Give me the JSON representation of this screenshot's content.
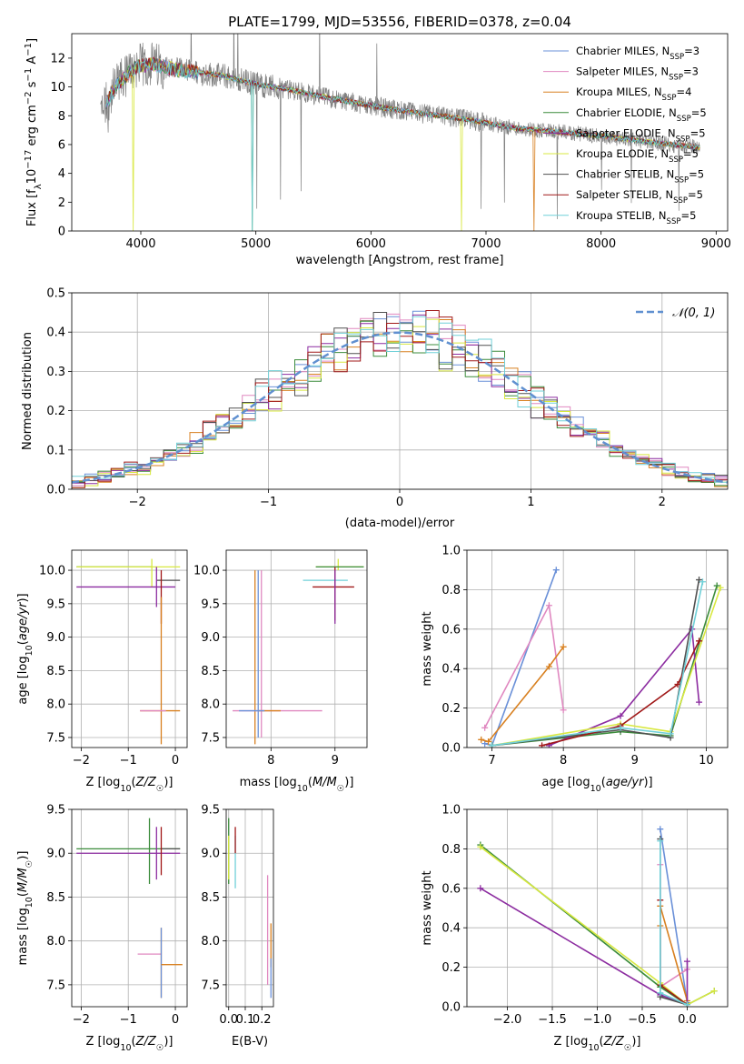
{
  "title": "PLATE=1799, MJD=53556, FIBERID=0378, z=0.04",
  "models": [
    {
      "label": "Chabrier MILES, N_SSP=3",
      "base": "Chabrier MILES, N",
      "sub": "SSP",
      "tail": "=3",
      "color": "#6a90d8"
    },
    {
      "label": "Salpeter MILES, N_SSP=3",
      "base": "Salpeter MILES, N",
      "sub": "SSP",
      "tail": "=3",
      "color": "#e088c0"
    },
    {
      "label": "Kroupa MILES, N_SSP=4",
      "base": "Kroupa MILES, N",
      "sub": "SSP",
      "tail": "=4",
      "color": "#d88020"
    },
    {
      "label": "Chabrier ELODIE, N_SSP=5",
      "base": "Chabrier ELODIE, N",
      "sub": "SSP",
      "tail": "=5",
      "color": "#3c8c3c"
    },
    {
      "label": "Salpeter ELODIE, N_SSP=5",
      "base": "Salpeter ELODIE, N",
      "sub": "SSP",
      "tail": "=5",
      "color": "#8c2ca0"
    },
    {
      "label": "Kroupa ELODIE, N_SSP=5",
      "base": "Kroupa ELODIE, N",
      "sub": "SSP",
      "tail": "=5",
      "color": "#d8e840"
    },
    {
      "label": "Chabrier STELIB, N_SSP=5",
      "base": "Chabrier STELIB, N",
      "sub": "SSP",
      "tail": "=5",
      "color": "#505050"
    },
    {
      "label": "Salpeter STELIB, N_SSP=5",
      "base": "Salpeter STELIB, N",
      "sub": "SSP",
      "tail": "=5",
      "color": "#a01818"
    },
    {
      "label": "Kroupa STELIB, N_SSP=5",
      "base": "Kroupa STELIB, N",
      "sub": "SSP",
      "tail": "=5",
      "color": "#70d0d8"
    }
  ],
  "chart_data": [
    {
      "id": "spectrum",
      "type": "line",
      "xlabel": "wavelength [Angstrom, rest frame]",
      "ylabel": "Flux [f_λ 10^-17 erg cm^-2 s^-1 A^-1]",
      "xlim": [
        3400,
        9100
      ],
      "ylim": [
        0,
        13.7
      ],
      "xticks": [
        4000,
        5000,
        6000,
        7000,
        8000,
        9000
      ],
      "yticks": [
        0,
        2,
        4,
        6,
        8,
        10,
        12
      ],
      "grid": false,
      "legend": "upper right",
      "continuum_x": [
        3650,
        3800,
        3950,
        4100,
        4300,
        4500,
        4700,
        5000,
        5300,
        5600,
        6000,
        6400,
        6800,
        7200,
        7600,
        8000,
        8400,
        8850
      ],
      "continuum_y": [
        8.3,
        10.2,
        11.4,
        11.6,
        11.2,
        11.0,
        10.8,
        10.2,
        9.8,
        9.3,
        8.7,
        8.2,
        7.8,
        7.2,
        6.9,
        6.6,
        6.2,
        5.8
      ],
      "data_color": "#808080"
    },
    {
      "id": "residuals",
      "type": "histogram",
      "xlabel": "(data-model)/error",
      "ylabel": "Normed distribution",
      "xlim": [
        -2.5,
        2.5
      ],
      "ylim": [
        0,
        0.5
      ],
      "xticks": [
        -2,
        -1,
        0,
        1,
        2
      ],
      "yticks": [
        0.0,
        0.1,
        0.2,
        0.3,
        0.4,
        0.5
      ],
      "grid": true,
      "legend": "upper right",
      "reference_curve": {
        "label": "N(0,1)",
        "color": "#6090d0"
      },
      "bin_width": 0.1
    },
    {
      "id": "age_vs_Z",
      "type": "errorbar",
      "xlabel": "Z [log10(Z/Z☉)]",
      "ylabel": "age [log10(age/yr)]",
      "xlim": [
        -2.2,
        0.25
      ],
      "ylim": [
        7.35,
        10.3
      ],
      "xticks": [
        -2,
        -1,
        0
      ],
      "yticks": [
        7.5,
        8.0,
        8.5,
        9.0,
        9.5,
        10.0
      ],
      "grid": true,
      "points": [
        {
          "model": 3,
          "x": -1.0,
          "xerr": [
            1.1,
            0.5
          ],
          "y": 10.05,
          "yerr": [
            0.0,
            0.0
          ]
        },
        {
          "model": 5,
          "x": -0.5,
          "xerr": [
            1.6,
            0.6
          ],
          "y": 10.05,
          "yerr": [
            0.3,
            0.12
          ]
        },
        {
          "model": 6,
          "x": -0.1,
          "xerr": [
            0.3,
            0.2
          ],
          "y": 9.85,
          "yerr": [
            0.0,
            0.0
          ]
        },
        {
          "model": 4,
          "x": -0.9,
          "xerr": [
            1.2,
            0.9
          ],
          "y": 9.75,
          "yerr": [
            0.0,
            0.0
          ]
        },
        {
          "model": 4,
          "x": -0.4,
          "xerr": [
            0.0,
            0.0
          ],
          "y": 9.75,
          "yerr": [
            0.3,
            0.3
          ]
        },
        {
          "model": 7,
          "x": -0.3,
          "xerr": [
            0.0,
            0.0
          ],
          "y": 9.6,
          "yerr": [
            0.4,
            0.4
          ]
        },
        {
          "model": 2,
          "x": -0.3,
          "xerr": [
            0.45,
            0.4
          ],
          "y": 7.9,
          "yerr": [
            0.5,
            1.7
          ]
        },
        {
          "model": 1,
          "x": -0.3,
          "xerr": [
            0.45,
            0.1
          ],
          "y": 7.9,
          "yerr": [
            0.0,
            0.0
          ]
        }
      ]
    },
    {
      "id": "age_vs_mass",
      "type": "errorbar",
      "xlabel": "mass [log10(M/M☉)]",
      "ylabel": "",
      "xlim": [
        7.3,
        9.5
      ],
      "ylim": [
        7.35,
        10.3
      ],
      "xticks": [
        8,
        9
      ],
      "yticks": [
        7.5,
        8.0,
        8.5,
        9.0,
        9.5,
        10.0
      ],
      "grid": true,
      "points": [
        {
          "model": 5,
          "x": 9.05,
          "xerr": [
            0.35,
            0.4
          ],
          "y": 10.05,
          "yerr": [
            0.05,
            0.12
          ]
        },
        {
          "model": 3,
          "x": 9.05,
          "xerr": [
            0.35,
            0.4
          ],
          "y": 10.05,
          "yerr": [
            0.0,
            0.0
          ]
        },
        {
          "model": 8,
          "x": 8.9,
          "xerr": [
            0.4,
            0.3
          ],
          "y": 9.85,
          "yerr": [
            0.0,
            0.0
          ]
        },
        {
          "model": 7,
          "x": 9.0,
          "xerr": [
            0.35,
            0.3
          ],
          "y": 9.75,
          "yerr": [
            0.5,
            0.3
          ]
        },
        {
          "model": 4,
          "x": 9.0,
          "xerr": [
            0.0,
            0.0
          ],
          "y": 9.6,
          "yerr": [
            0.4,
            0.4
          ]
        },
        {
          "model": 2,
          "x": 7.75,
          "xerr": [
            0.0,
            0.0
          ],
          "y": 8.5,
          "yerr": [
            1.1,
            1.5
          ]
        },
        {
          "model": 1,
          "x": 7.85,
          "xerr": [
            0.0,
            0.0
          ],
          "y": 8.5,
          "yerr": [
            1.0,
            1.5
          ]
        },
        {
          "model": 0,
          "x": 7.8,
          "xerr": [
            0.0,
            0.0
          ],
          "y": 8.5,
          "yerr": [
            1.0,
            1.5
          ]
        },
        {
          "model": 1,
          "x": 8.0,
          "xerr": [
            0.6,
            0.8
          ],
          "y": 7.9,
          "yerr": [
            0.0,
            0.0
          ]
        },
        {
          "model": 2,
          "x": 7.8,
          "xerr": [
            0.0,
            0.35
          ],
          "y": 7.9,
          "yerr": [
            0.0,
            0.0
          ]
        },
        {
          "model": 0,
          "x": 7.6,
          "xerr": [
            0.1,
            0.3
          ],
          "y": 7.9,
          "yerr": [
            0.0,
            0.0
          ]
        }
      ]
    },
    {
      "id": "weight_vs_age",
      "type": "line",
      "xlabel": "age [log10(age/yr)]",
      "ylabel": "mass weight",
      "xlim": [
        6.65,
        10.3
      ],
      "ylim": [
        0,
        1.0
      ],
      "xticks": [
        7,
        8,
        9,
        10
      ],
      "yticks": [
        0.0,
        0.2,
        0.4,
        0.6,
        0.8,
        1.0
      ],
      "grid": true,
      "series": [
        {
          "model": 0,
          "x": [
            6.9,
            7.0,
            7.9
          ],
          "y": [
            0.02,
            0.01,
            0.9
          ]
        },
        {
          "model": 1,
          "x": [
            6.9,
            7.8,
            8.0
          ],
          "y": [
            0.1,
            0.72,
            0.19
          ]
        },
        {
          "model": 2,
          "x": [
            6.85,
            6.95,
            7.8,
            8.0
          ],
          "y": [
            0.04,
            0.03,
            0.41,
            0.51
          ]
        },
        {
          "model": 3,
          "x": [
            7.0,
            8.8,
            9.5,
            10.15
          ],
          "y": [
            0.01,
            0.08,
            0.06,
            0.82
          ]
        },
        {
          "model": 4,
          "x": [
            7.8,
            8.8,
            9.8,
            9.9
          ],
          "y": [
            0.01,
            0.16,
            0.6,
            0.23
          ]
        },
        {
          "model": 5,
          "x": [
            7.0,
            8.8,
            9.5,
            10.2
          ],
          "y": [
            0.01,
            0.12,
            0.08,
            0.81
          ]
        },
        {
          "model": 6,
          "x": [
            7.0,
            8.8,
            9.5,
            9.9
          ],
          "y": [
            0.01,
            0.09,
            0.05,
            0.85
          ]
        },
        {
          "model": 7,
          "x": [
            7.7,
            8.8,
            9.6,
            9.9
          ],
          "y": [
            0.01,
            0.11,
            0.32,
            0.54
          ]
        },
        {
          "model": 8,
          "x": [
            7.0,
            8.8,
            9.5,
            9.95
          ],
          "y": [
            0.01,
            0.1,
            0.07,
            0.84
          ]
        }
      ]
    },
    {
      "id": "mass_vs_Z",
      "type": "errorbar",
      "xlabel": "Z [log10(Z/Z☉)]",
      "ylabel": "mass [log10(M/M☉)]",
      "xlim": [
        -2.2,
        0.25
      ],
      "ylim": [
        7.25,
        9.5
      ],
      "xticks": [
        -2,
        -1,
        0
      ],
      "yticks": [
        7.5,
        8.0,
        8.5,
        9.0,
        9.5
      ],
      "grid": true,
      "points": [
        {
          "model": 3,
          "x": -1.0,
          "xerr": [
            1.1,
            1.1
          ],
          "y": 9.05,
          "yerr": [
            0.0,
            0.0
          ]
        },
        {
          "model": 3,
          "x": -0.55,
          "xerr": [
            0.0,
            0.0
          ],
          "y": 9.05,
          "yerr": [
            0.4,
            0.35
          ]
        },
        {
          "model": 4,
          "x": -1.0,
          "xerr": [
            1.1,
            1.1
          ],
          "y": 9.0,
          "yerr": [
            0.0,
            0.0
          ]
        },
        {
          "model": 4,
          "x": -0.4,
          "xerr": [
            0.0,
            0.0
          ],
          "y": 9.0,
          "yerr": [
            0.3,
            0.3
          ]
        },
        {
          "model": 6,
          "x": -0.1,
          "xerr": [
            0.2,
            0.2
          ],
          "y": 9.05,
          "yerr": [
            0.0,
            0.0
          ]
        },
        {
          "model": 7,
          "x": -0.3,
          "xerr": [
            0.0,
            0.0
          ],
          "y": 9.05,
          "yerr": [
            0.3,
            0.25
          ]
        },
        {
          "model": 1,
          "x": -0.4,
          "xerr": [
            0.4,
            0.1
          ],
          "y": 7.85,
          "yerr": [
            0.0,
            0.0
          ]
        },
        {
          "model": 2,
          "x": -0.3,
          "xerr": [
            0.0,
            0.0
          ],
          "y": 7.75,
          "yerr": [
            0.4,
            0.4
          ]
        },
        {
          "model": 0,
          "x": -0.3,
          "xerr": [
            0.0,
            0.0
          ],
          "y": 7.75,
          "yerr": [
            0.4,
            0.4
          ]
        },
        {
          "model": 2,
          "x": -0.1,
          "xerr": [
            0.2,
            0.25
          ],
          "y": 7.73,
          "yerr": [
            0.0,
            0.0
          ]
        }
      ]
    },
    {
      "id": "mass_vs_ebv",
      "type": "errorbar",
      "xlabel": "E(B-V)",
      "ylabel": "",
      "xlim": [
        -0.015,
        0.27
      ],
      "ylim": [
        7.25,
        9.5
      ],
      "xticks": [
        0.0,
        0.1,
        0.2
      ],
      "yticks": [
        7.5,
        8.0,
        8.5,
        9.0,
        9.5
      ],
      "grid": true,
      "points": [
        {
          "model": 3,
          "x": 0.0,
          "xerr": [
            0.0,
            0.0
          ],
          "y": 9.1,
          "yerr": [
            0.45,
            0.3
          ]
        },
        {
          "model": 5,
          "x": 0.0,
          "xerr": [
            0.0,
            0.0
          ],
          "y": 9.0,
          "yerr": [
            0.3,
            0.2
          ]
        },
        {
          "model": 8,
          "x": 0.04,
          "xerr": [
            0.0,
            0.0
          ],
          "y": 8.95,
          "yerr": [
            0.35,
            0.25
          ]
        },
        {
          "model": 7,
          "x": 0.04,
          "xerr": [
            0.0,
            0.0
          ],
          "y": 9.1,
          "yerr": [
            0.1,
            0.2
          ]
        },
        {
          "model": 1,
          "x": 0.235,
          "xerr": [
            0.0,
            0.0
          ],
          "y": 8.1,
          "yerr": [
            0.6,
            0.65
          ]
        },
        {
          "model": 2,
          "x": 0.255,
          "xerr": [
            0.0,
            0.0
          ],
          "y": 7.9,
          "yerr": [
            0.2,
            0.3
          ]
        },
        {
          "model": 0,
          "x": 0.255,
          "xerr": [
            0.0,
            0.0
          ],
          "y": 7.6,
          "yerr": [
            0.25,
            0.2
          ]
        }
      ]
    },
    {
      "id": "weight_vs_Z",
      "type": "line",
      "xlabel": "Z [log10(Z/Z☉)]",
      "ylabel": "mass weight",
      "xlim": [
        -2.45,
        0.45
      ],
      "ylim": [
        0,
        1.0
      ],
      "xticks": [
        -2.0,
        -1.5,
        -1.0,
        -0.5,
        0.0
      ],
      "yticks": [
        0.0,
        0.2,
        0.4,
        0.6,
        0.8,
        1.0
      ],
      "grid": true,
      "series": [
        {
          "model": 0,
          "x": [
            -0.3,
            0.0,
            0.0
          ],
          "y": [
            0.9,
            0.02,
            0.01
          ]
        },
        {
          "model": 1,
          "x": [
            -0.3,
            -0.3,
            0.0
          ],
          "y": [
            0.72,
            0.1,
            0.19
          ]
        },
        {
          "model": 2,
          "x": [
            -0.3,
            -0.3,
            0.0
          ],
          "y": [
            0.41,
            0.51,
            0.03
          ]
        },
        {
          "model": 3,
          "x": [
            -2.3,
            -0.3,
            0.0,
            0.3
          ],
          "y": [
            0.82,
            0.1,
            0.01,
            0.08
          ]
        },
        {
          "model": 4,
          "x": [
            -2.3,
            -0.3,
            0.0,
            0.0
          ],
          "y": [
            0.6,
            0.06,
            0.01,
            0.23
          ]
        },
        {
          "model": 5,
          "x": [
            -2.3,
            -0.3,
            0.0,
            0.3
          ],
          "y": [
            0.81,
            0.12,
            0.01,
            0.08
          ]
        },
        {
          "model": 6,
          "x": [
            -0.3,
            -0.3,
            0.0
          ],
          "y": [
            0.85,
            0.05,
            0.01
          ]
        },
        {
          "model": 7,
          "x": [
            -0.3,
            -0.3,
            0.0
          ],
          "y": [
            0.54,
            0.11,
            0.01
          ]
        },
        {
          "model": 8,
          "x": [
            -0.3,
            -0.3,
            0.0
          ],
          "y": [
            0.84,
            0.07,
            0.01
          ]
        }
      ]
    }
  ]
}
